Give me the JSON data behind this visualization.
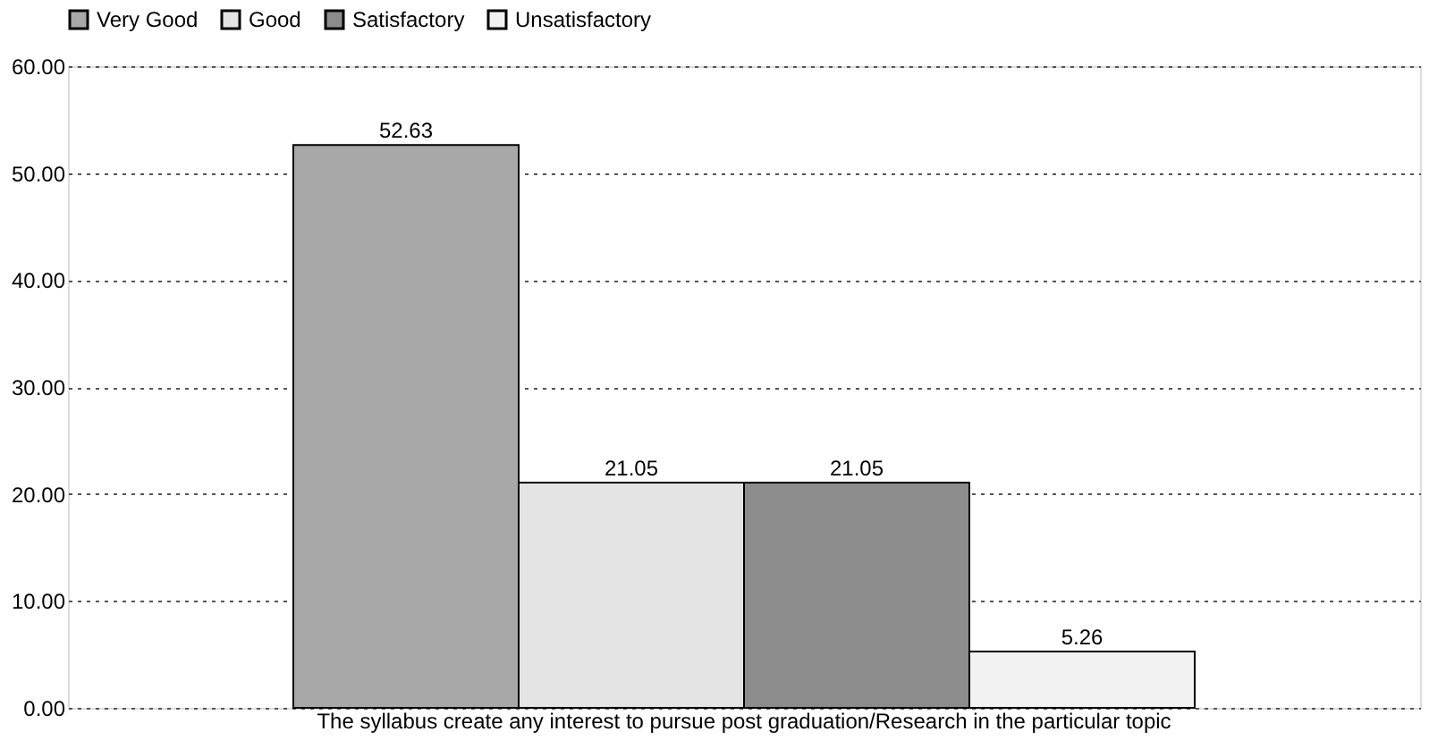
{
  "chart_data": {
    "type": "bar",
    "categories": [
      "The syllabus create any interest to pursue post graduation/Research in the particular topic"
    ],
    "series": [
      {
        "name": "Very Good",
        "color": "#a8a8a8",
        "values": [
          52.63
        ]
      },
      {
        "name": "Good",
        "color": "#e4e4e4",
        "values": [
          21.05
        ]
      },
      {
        "name": "Satisfactory",
        "color": "#8c8c8c",
        "values": [
          21.05
        ]
      },
      {
        "name": "Unsatisfactory",
        "color": "#f2f2f2",
        "values": [
          5.26
        ]
      }
    ],
    "ylim": [
      0,
      60
    ],
    "yticks": [
      {
        "value": 0,
        "label": "0.00"
      },
      {
        "value": 10,
        "label": "10.00"
      },
      {
        "value": 20,
        "label": "20.00"
      },
      {
        "value": 30,
        "label": "30.00"
      },
      {
        "value": 40,
        "label": "40.00"
      },
      {
        "value": 50,
        "label": "50.00"
      },
      {
        "value": 60,
        "label": "60.00"
      }
    ],
    "grid": "y",
    "legend": "top",
    "data_labels": true
  }
}
